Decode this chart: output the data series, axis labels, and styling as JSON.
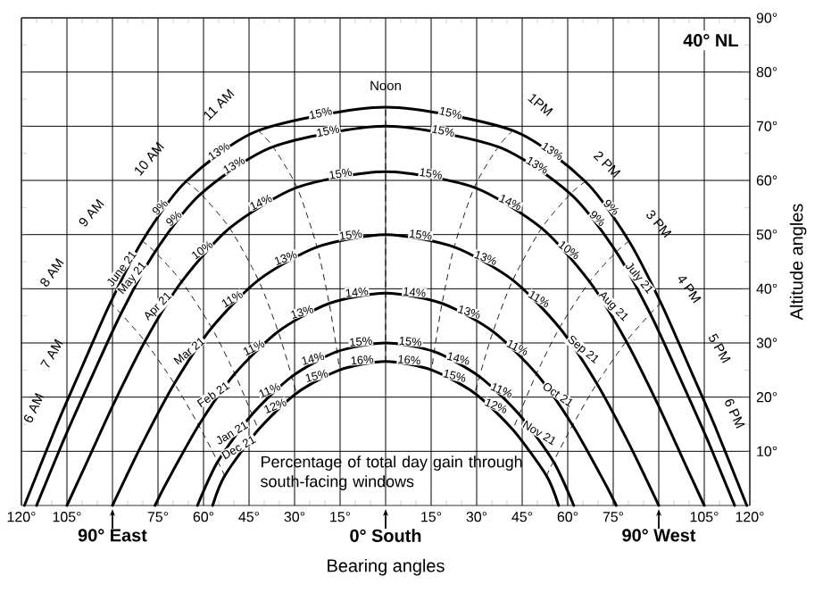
{
  "chart_data": {
    "type": "line",
    "title": "40° NL",
    "xlabel": "Bearing angles",
    "ylabel": "Altitude angles",
    "xlim": [
      -120,
      120
    ],
    "ylim": [
      0,
      90
    ],
    "xticks": [
      {
        "value": -120,
        "label": "120°"
      },
      {
        "value": -105,
        "label": "105°"
      },
      {
        "value": -90,
        "label": null
      },
      {
        "value": -75,
        "label": "75°"
      },
      {
        "value": -60,
        "label": "60°"
      },
      {
        "value": -45,
        "label": "45°"
      },
      {
        "value": -30,
        "label": "30°"
      },
      {
        "value": -15,
        "label": "15°"
      },
      {
        "value": 0,
        "label": null
      },
      {
        "value": 15,
        "label": "15°"
      },
      {
        "value": 30,
        "label": "30°"
      },
      {
        "value": 45,
        "label": "45°"
      },
      {
        "value": 60,
        "label": "60°"
      },
      {
        "value": 75,
        "label": "75°"
      },
      {
        "value": 90,
        "label": null
      },
      {
        "value": 105,
        "label": "105°"
      },
      {
        "value": 120,
        "label": "120°"
      }
    ],
    "yticks": [
      {
        "value": 10,
        "label": "10°"
      },
      {
        "value": 20,
        "label": "20°"
      },
      {
        "value": 30,
        "label": "30°"
      },
      {
        "value": 40,
        "label": "40°"
      },
      {
        "value": 50,
        "label": "50°"
      },
      {
        "value": 60,
        "label": "60°"
      },
      {
        "value": 70,
        "label": "70°"
      },
      {
        "value": 80,
        "label": "80°"
      },
      {
        "value": 90,
        "label": "90°"
      }
    ],
    "grid": true,
    "marker": "none",
    "series": [
      {
        "color": "#000000",
        "line_style": "solid",
        "x": [
          -119,
          -108.4,
          -99.7,
          -90.7,
          -80.2,
          -65.8,
          -41.9,
          0,
          41.9,
          65.8,
          80.2,
          90.7,
          99.7,
          108.4,
          119
        ],
        "values": [
          0,
          14.8,
          26,
          37.4,
          48.8,
          59.8,
          69.2,
          73.5,
          69.2,
          59.8,
          48.8,
          37.4,
          26,
          14.8,
          0
        ]
      },
      {
        "color": "#000000",
        "line_style": "solid",
        "x": [
          -115,
          -105.6,
          -96.6,
          -87.2,
          -76,
          -60.9,
          -37.1,
          0,
          37.1,
          60.9,
          76,
          87.2,
          96.6,
          105.6,
          115
        ],
        "values": [
          0,
          12.7,
          24,
          35.4,
          46.8,
          57.5,
          66.2,
          70,
          66.2,
          57.5,
          46.8,
          35.4,
          24,
          12.7,
          0
        ]
      },
      {
        "color": "#000000",
        "line_style": "solid",
        "x": [
          -105,
          -98.9,
          -89.5,
          -79.3,
          -67.2,
          -51.4,
          -29.2,
          0,
          29.2,
          51.4,
          67.2,
          79.3,
          89.5,
          98.9,
          105
        ],
        "values": [
          0,
          7.4,
          18.9,
          30.3,
          41.3,
          51.2,
          58.7,
          61.6,
          58.7,
          51.2,
          41.3,
          30.3,
          18.9,
          7.4,
          0
        ]
      },
      {
        "color": "#000000",
        "line_style": "solid",
        "x": [
          -90,
          -80.2,
          -69.6,
          -57.3,
          -41.9,
          -22.6,
          0,
          22.6,
          41.9,
          57.3,
          69.6,
          80.2,
          90
        ],
        "values": [
          0,
          11.4,
          22.5,
          32.8,
          41.6,
          47.7,
          50,
          47.7,
          41.6,
          32.8,
          22.5,
          11.4,
          0
        ]
      },
      {
        "color": "#000000",
        "line_style": "solid",
        "x": [
          -76,
          -72.1,
          -61.6,
          -49.7,
          -35.4,
          -18.6,
          0,
          18.6,
          35.4,
          49.7,
          61.6,
          72.1,
          76
        ],
        "values": [
          0,
          4.3,
          14.8,
          24.3,
          32.1,
          37.3,
          39.2,
          37.3,
          32.1,
          24.3,
          14.8,
          4.3,
          0
        ]
      },
      {
        "color": "#000000",
        "line_style": "solid",
        "x": [
          -62,
          -55.3,
          -44,
          -30.9,
          -16,
          0,
          16,
          30.9,
          44,
          55.3,
          62
        ],
        "values": [
          0,
          8.1,
          16.8,
          23.8,
          28.4,
          30,
          28.4,
          23.8,
          16.8,
          8.1,
          0
        ]
      },
      {
        "color": "#000000",
        "line_style": "solid",
        "x": [
          -57,
          -53,
          -41.9,
          -29.4,
          -15.2,
          0,
          15.2,
          29.4,
          41.9,
          53,
          57
        ],
        "values": [
          0,
          5.5,
          14,
          20.7,
          25,
          26.6,
          25,
          20.7,
          14,
          5.5,
          0
        ]
      },
      {
        "color": "#000000",
        "line_style": "dashed",
        "x": [
          -41.9,
          -37.1,
          -29.2,
          -22.6,
          -18.6,
          -16,
          -15.2
        ],
        "values": [
          69.2,
          66.2,
          58.7,
          47.7,
          37.3,
          28.4,
          25
        ]
      },
      {
        "color": "#000000",
        "line_style": "dashed",
        "x": [
          -65.8,
          -60.9,
          -51.4,
          -41.9,
          -35.4,
          -30.9,
          -29.4
        ],
        "values": [
          59.8,
          57.5,
          51.2,
          41.6,
          32.1,
          23.8,
          20.7
        ]
      },
      {
        "color": "#000000",
        "line_style": "dashed",
        "x": [
          -80.2,
          -76,
          -67.2,
          -57.3,
          -49.7,
          -44,
          -41.9
        ],
        "values": [
          48.8,
          46.8,
          41.3,
          32.8,
          24.3,
          16.8,
          14
        ]
      },
      {
        "color": "#000000",
        "line_style": "dashed",
        "x": [
          -90.7,
          -87.2,
          -79.3,
          -69.6,
          -61.6,
          -55.3,
          -53
        ],
        "values": [
          37.4,
          35.4,
          30.3,
          22.5,
          14.8,
          8.1,
          5.5
        ]
      },
      {
        "color": "#000000",
        "line_style": "dashed",
        "x": [
          0,
          0
        ],
        "values": [
          26.6,
          73.5
        ]
      },
      {
        "color": "#000000",
        "line_style": "dashed",
        "x": [
          41.9,
          37.1,
          29.2,
          22.6,
          18.6,
          16,
          15.2
        ],
        "values": [
          69.2,
          66.2,
          58.7,
          47.7,
          37.3,
          28.4,
          25
        ]
      },
      {
        "color": "#000000",
        "line_style": "dashed",
        "x": [
          65.8,
          60.9,
          51.4,
          41.9,
          35.4,
          30.9,
          29.4
        ],
        "values": [
          59.8,
          57.5,
          51.2,
          41.6,
          32.1,
          23.8,
          20.7
        ]
      },
      {
        "color": "#000000",
        "line_style": "dashed",
        "x": [
          80.2,
          76,
          67.2,
          57.3,
          49.7,
          44,
          41.9
        ],
        "values": [
          48.8,
          46.8,
          41.3,
          32.8,
          24.3,
          16.8,
          14
        ]
      },
      {
        "color": "#000000",
        "line_style": "dashed",
        "x": [
          90.7,
          87.2,
          79.3,
          69.6,
          61.6,
          55.3,
          53
        ],
        "values": [
          37.4,
          35.4,
          30.3,
          22.5,
          14.8,
          8.1,
          5.5
        ]
      }
    ],
    "annotations": [
      "Percentage of total day gain through south-facing windows",
      "90° East",
      "0° South",
      "90° West",
      "Noon",
      "11 AM",
      "10 AM",
      "9 AM",
      "8 AM",
      "7 AM",
      "6 AM",
      "1PM",
      "2 PM",
      "3 PM",
      "4 PM",
      "5 PM",
      "6 PM",
      {
        "text": "June 21",
        "x": -85.5,
        "y": 43.1
      },
      {
        "text": "May 21",
        "x": -81.6,
        "y": 41.1
      },
      {
        "text": "Apr 21",
        "x": -73.3,
        "y": 35.8
      },
      {
        "text": "Mar 21",
        "x": -63.5,
        "y": 27.7
      },
      {
        "text": "Feb 21",
        "x": -55.7,
        "y": 19.6
      },
      {
        "text": "Jan 21",
        "x": -49.7,
        "y": 12.5
      },
      {
        "text": "Dec 21",
        "x": -47.5,
        "y": 9.8
      },
      {
        "text": "July 21",
        "x": 81.6,
        "y": 41.1
      },
      {
        "text": "Aug 21",
        "x": 73.3,
        "y": 35.8
      },
      {
        "text": "Sep 21",
        "x": 63.5,
        "y": 27.7
      },
      {
        "text": "Oct 21",
        "x": 55.7,
        "y": 19.6
      },
      {
        "text": "Nov 21",
        "x": 49.7,
        "y": 12.5
      },
      {
        "text": "15%",
        "x": -21,
        "y": 71.4
      },
      {
        "text": "13%",
        "x": -53.9,
        "y": 64.5
      },
      {
        "text": "9%",
        "x": -73,
        "y": 54.3
      },
      {
        "text": "15%",
        "x": -18.6,
        "y": 68.1
      },
      {
        "text": "13%",
        "x": -49,
        "y": 61.9
      },
      {
        "text": "9%",
        "x": -68.5,
        "y": 52.2
      },
      {
        "text": "15%",
        "x": -14.6,
        "y": 60.2
      },
      {
        "text": "14%",
        "x": -40.3,
        "y": 55
      },
      {
        "text": "10%",
        "x": -59.3,
        "y": 46.3
      },
      {
        "text": "15%",
        "x": -11.3,
        "y": 48.9
      },
      {
        "text": "13%",
        "x": -32.3,
        "y": 44.7
      },
      {
        "text": "11%",
        "x": -49.6,
        "y": 37.2
      },
      {
        "text": "14%",
        "x": -9.3,
        "y": 38.3
      },
      {
        "text": "13%",
        "x": -27,
        "y": 34.7
      },
      {
        "text": "11%",
        "x": -42.6,
        "y": 28.2
      },
      {
        "text": "15%",
        "x": -8,
        "y": 29.2
      },
      {
        "text": "14%",
        "x": -23.5,
        "y": 26.1
      },
      {
        "text": "11%",
        "x": -37.5,
        "y": 20.3
      },
      {
        "text": "16%",
        "x": -7.6,
        "y": 25.8
      },
      {
        "text": "15%",
        "x": -22.3,
        "y": 22.9
      },
      {
        "text": "12%",
        "x": -35.7,
        "y": 17.4
      },
      {
        "text": "15%",
        "x": 21,
        "y": 71.4
      },
      {
        "text": "13%",
        "x": 53.9,
        "y": 64.5
      },
      {
        "text": "9%",
        "x": 73,
        "y": 54.3
      },
      {
        "text": "15%",
        "x": 18.6,
        "y": 68.1
      },
      {
        "text": "13%",
        "x": 49,
        "y": 61.9
      },
      {
        "text": "9%",
        "x": 68.5,
        "y": 52.2
      },
      {
        "text": "15%",
        "x": 14.6,
        "y": 60.2
      },
      {
        "text": "14%",
        "x": 40.3,
        "y": 55
      },
      {
        "text": "10%",
        "x": 59.3,
        "y": 46.3
      },
      {
        "text": "15%",
        "x": 11.3,
        "y": 48.9
      },
      {
        "text": "13%",
        "x": 32.3,
        "y": 44.7
      },
      {
        "text": "11%",
        "x": 49.6,
        "y": 37.2
      },
      {
        "text": "14%",
        "x": 9.3,
        "y": 38.3
      },
      {
        "text": "13%",
        "x": 27,
        "y": 34.7
      },
      {
        "text": "11%",
        "x": 42.6,
        "y": 28.2
      },
      {
        "text": "15%",
        "x": 8,
        "y": 29.2
      },
      {
        "text": "14%",
        "x": 23.5,
        "y": 26.1
      },
      {
        "text": "11%",
        "x": 37.5,
        "y": 20.3
      },
      {
        "text": "16%",
        "x": 7.6,
        "y": 25.8
      },
      {
        "text": "15%",
        "x": 22.3,
        "y": 22.9
      },
      {
        "text": "12%",
        "x": 35.7,
        "y": 17.4
      }
    ]
  }
}
